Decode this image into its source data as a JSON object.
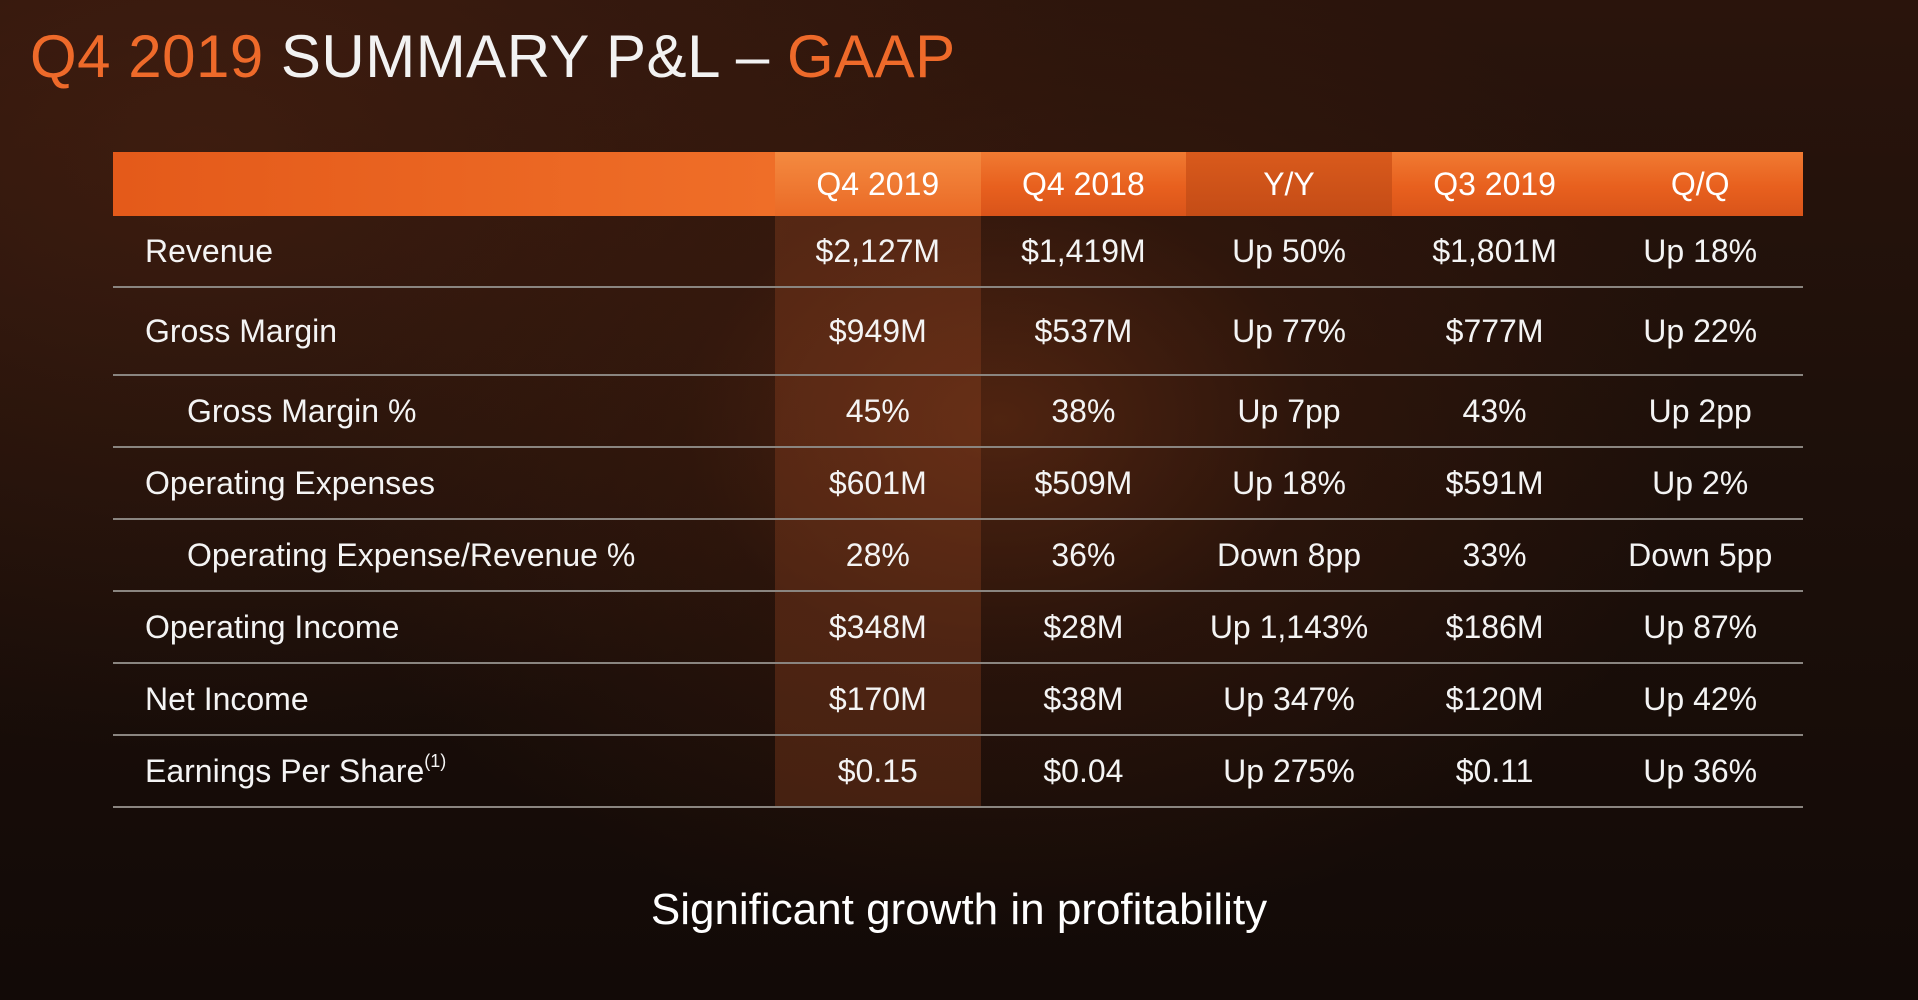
{
  "title": {
    "part1": "Q4 2019",
    "part2": " SUMMARY P&L – ",
    "part3": "GAAP"
  },
  "colors": {
    "accent": "#ee6a2a",
    "header_bar": "#e8601e",
    "background": "#1e100a",
    "row_divider": "#8a8580"
  },
  "table": {
    "headers": [
      "",
      "Q4 2019",
      "Q4 2018",
      "Y/Y",
      "Q3 2019",
      "Q/Q"
    ],
    "rows": [
      {
        "label": "Revenue",
        "q4_2019": "$2,127M",
        "q4_2018": "$1,419M",
        "yy": "Up 50%",
        "q3_2019": "$1,801M",
        "qq": "Up 18%"
      },
      {
        "label": "Gross Margin",
        "q4_2019": "$949M",
        "q4_2018": "$537M",
        "yy": "Up 77%",
        "q3_2019": "$777M",
        "qq": "Up 22%"
      },
      {
        "label": "Gross Margin %",
        "q4_2019": "45%",
        "q4_2018": "38%",
        "yy": "Up 7pp",
        "q3_2019": "43%",
        "qq": "Up 2pp"
      },
      {
        "label": "Operating Expenses",
        "q4_2019": "$601M",
        "q4_2018": "$509M",
        "yy": "Up 18%",
        "q3_2019": "$591M",
        "qq": "Up 2%"
      },
      {
        "label": "Operating Expense/Revenue %",
        "q4_2019": "28%",
        "q4_2018": "36%",
        "yy": "Down 8pp",
        "q3_2019": "33%",
        "qq": "Down 5pp"
      },
      {
        "label": "Operating Income",
        "q4_2019": "$348M",
        "q4_2018": "$28M",
        "yy": "Up 1,143%",
        "q3_2019": "$186M",
        "qq": "Up 87%"
      },
      {
        "label": "Net Income",
        "q4_2019": "$170M",
        "q4_2018": "$38M",
        "yy": "Up 347%",
        "q3_2019": "$120M",
        "qq": "Up 42%"
      },
      {
        "label": "Earnings Per Share",
        "label_sup": "(1)",
        "q4_2019": "$0.15",
        "q4_2018": "$0.04",
        "yy": "Up 275%",
        "q3_2019": "$0.11",
        "qq": "Up 36%"
      }
    ]
  },
  "footer": "Significant growth in profitability"
}
